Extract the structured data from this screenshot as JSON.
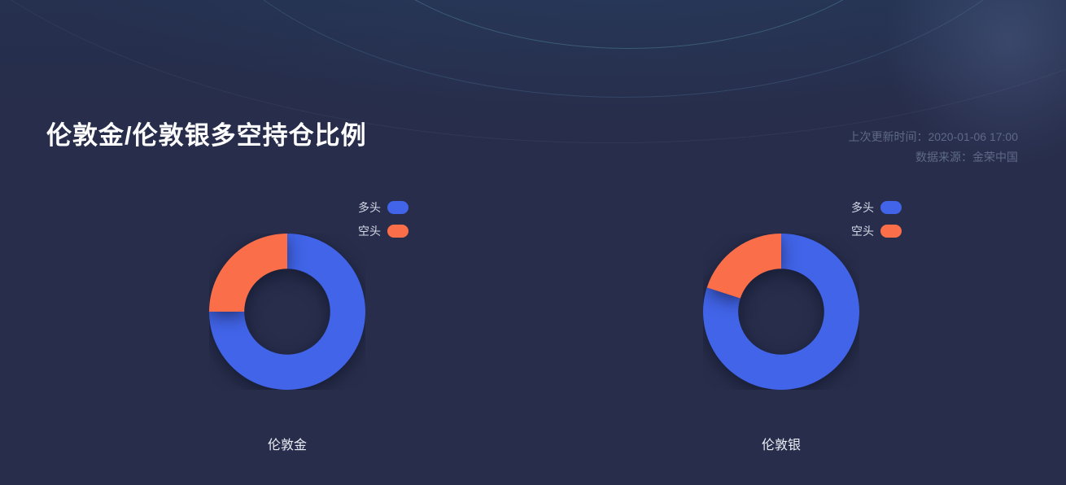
{
  "page": {
    "title": "伦敦金/伦敦银多空持仓比例",
    "last_updated": "上次更新时间：2020-01-06 17:00",
    "data_source": "数据来源：金荣中国"
  },
  "colors": {
    "long_blue": "#4164e8",
    "short_orange": "#fa6e4a",
    "background": "#272d4b",
    "meta_text": "#5e6988"
  },
  "chart_data": [
    {
      "type": "pie",
      "title": "伦敦金",
      "donut": true,
      "inner_radius_pct": 55,
      "start_angle": "12-oclock",
      "direction": "clockwise",
      "legend_position": "top-right",
      "series": [
        {
          "name": "多头",
          "value": 75,
          "unit": "%",
          "color": "#4164e8"
        },
        {
          "name": "空头",
          "value": 25,
          "unit": "%",
          "color": "#fa6e4a"
        }
      ]
    },
    {
      "type": "pie",
      "title": "伦敦银",
      "donut": true,
      "inner_radius_pct": 55,
      "start_angle": "12-oclock",
      "direction": "clockwise",
      "legend_position": "top-right",
      "series": [
        {
          "name": "多头",
          "value": 80,
          "unit": "%",
          "color": "#4164e8"
        },
        {
          "name": "空头",
          "value": 20,
          "unit": "%",
          "color": "#fa6e4a"
        }
      ]
    }
  ]
}
